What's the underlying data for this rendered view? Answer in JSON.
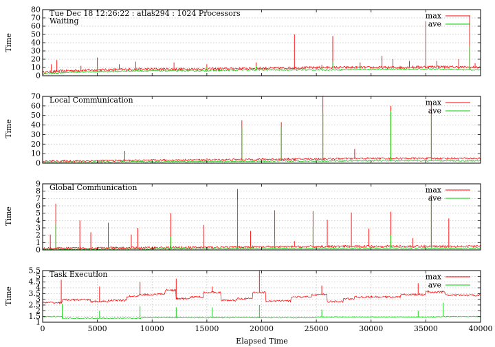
{
  "chart_data": [
    {
      "type": "line",
      "title": "Tue Dec 18 12:26:22 : atlas294 : 1024 Processors",
      "subtitle": "Waiting",
      "ylabel": "Time",
      "xlabel": "",
      "xlim": [
        0,
        40000
      ],
      "ylim": [
        0,
        80
      ],
      "yticks": [
        0,
        10,
        20,
        30,
        40,
        50,
        60,
        70,
        80
      ],
      "ytick_labels": [
        "0",
        "10",
        "20",
        "30",
        "40",
        "50",
        "60",
        "70",
        "80"
      ],
      "grid": true,
      "legend_position": "top-right",
      "series": [
        {
          "name": "max",
          "color": "#ff0000",
          "baseline": [
            [
              0,
              4
            ],
            [
              2000,
              6
            ],
            [
              5000,
              7
            ],
            [
              9000,
              8
            ],
            [
              14000,
              8
            ],
            [
              20000,
              9
            ],
            [
              26000,
              10
            ],
            [
              32000,
              10
            ],
            [
              36000,
              11
            ],
            [
              40000,
              10
            ]
          ],
          "noise": 1.5,
          "spikes": [
            [
              800,
              14
            ],
            [
              1300,
              19
            ],
            [
              3500,
              12
            ],
            [
              5000,
              22
            ],
            [
              7000,
              14
            ],
            [
              8500,
              17
            ],
            [
              12000,
              16
            ],
            [
              15000,
              14
            ],
            [
              19500,
              16
            ],
            [
              23000,
              50
            ],
            [
              25500,
              13
            ],
            [
              26500,
              48
            ],
            [
              29000,
              16
            ],
            [
              31000,
              24
            ],
            [
              32000,
              20
            ],
            [
              33500,
              18
            ],
            [
              35000,
              66
            ],
            [
              36000,
              18
            ],
            [
              38000,
              20
            ],
            [
              39000,
              73
            ],
            [
              39500,
              15
            ]
          ]
        },
        {
          "name": "ave",
          "color": "#00cc00",
          "baseline": [
            [
              0,
              2
            ],
            [
              2000,
              4
            ],
            [
              5000,
              5
            ],
            [
              9000,
              6
            ],
            [
              14000,
              6
            ],
            [
              20000,
              7
            ],
            [
              26000,
              7
            ],
            [
              32000,
              8
            ],
            [
              36000,
              8
            ],
            [
              40000,
              7
            ]
          ],
          "noise": 0.8,
          "spikes": [
            [
              5000,
              12
            ],
            [
              8500,
              9
            ],
            [
              15000,
              10
            ],
            [
              19500,
              12
            ],
            [
              25500,
              10
            ],
            [
              26500,
              17
            ],
            [
              29000,
              12
            ],
            [
              39000,
              36
            ]
          ]
        }
      ]
    },
    {
      "type": "line",
      "title": "Local Communication",
      "ylabel": "Time",
      "xlabel": "",
      "xlim": [
        0,
        40000
      ],
      "ylim": [
        0,
        70
      ],
      "yticks": [
        0,
        10,
        20,
        30,
        40,
        50,
        60,
        70
      ],
      "ytick_labels": [
        "0",
        "10",
        "20",
        "30",
        "40",
        "50",
        "60",
        "70"
      ],
      "grid": true,
      "legend_position": "top-right",
      "series": [
        {
          "name": "max",
          "color": "#ff0000",
          "baseline": [
            [
              0,
              2
            ],
            [
              10000,
              3
            ],
            [
              20000,
              4
            ],
            [
              30000,
              5
            ],
            [
              40000,
              5
            ]
          ],
          "noise": 1.0,
          "spikes": [
            [
              7500,
              13
            ],
            [
              18200,
              45
            ],
            [
              21800,
              43
            ],
            [
              25600,
              70
            ],
            [
              28500,
              15
            ],
            [
              31800,
              60
            ],
            [
              35500,
              64
            ]
          ]
        },
        {
          "name": "ave",
          "color": "#00cc00",
          "baseline": [
            [
              0,
              1
            ],
            [
              10000,
              1.5
            ],
            [
              20000,
              2
            ],
            [
              30000,
              2.5
            ],
            [
              40000,
              2.5
            ]
          ],
          "noise": 0.6,
          "spikes": [
            [
              18200,
              37
            ],
            [
              21800,
              38
            ],
            [
              25600,
              53
            ],
            [
              31800,
              55
            ],
            [
              35500,
              50
            ]
          ]
        }
      ]
    },
    {
      "type": "line",
      "title": "Global Communication",
      "ylabel": "Time",
      "xlabel": "",
      "xlim": [
        0,
        40000
      ],
      "ylim": [
        0,
        9
      ],
      "yticks": [
        0,
        1,
        2,
        3,
        4,
        5,
        6,
        7,
        8,
        9
      ],
      "ytick_labels": [
        "0",
        "1",
        "2",
        "3",
        "4",
        "5",
        "6",
        "7",
        "8",
        "9"
      ],
      "grid": true,
      "legend_position": "top-right",
      "series": [
        {
          "name": "max",
          "color": "#ff0000",
          "baseline": [
            [
              0,
              0.2
            ],
            [
              10000,
              0.3
            ],
            [
              20000,
              0.4
            ],
            [
              30000,
              0.5
            ],
            [
              40000,
              0.5
            ]
          ],
          "noise": 0.15,
          "spikes": [
            [
              700,
              2.1
            ],
            [
              1200,
              6.3
            ],
            [
              3400,
              4.0
            ],
            [
              4400,
              2.4
            ],
            [
              6000,
              3.7
            ],
            [
              8100,
              2.1
            ],
            [
              8700,
              3.0
            ],
            [
              11700,
              5.0
            ],
            [
              14700,
              3.4
            ],
            [
              17800,
              8.3
            ],
            [
              19000,
              2.6
            ],
            [
              21200,
              5.4
            ],
            [
              23000,
              1.2
            ],
            [
              24700,
              5.3
            ],
            [
              26000,
              4.1
            ],
            [
              28200,
              5.1
            ],
            [
              29800,
              2.9
            ],
            [
              31800,
              5.2
            ],
            [
              33800,
              1.6
            ],
            [
              35500,
              7.5
            ],
            [
              37100,
              4.3
            ]
          ]
        },
        {
          "name": "ave",
          "color": "#00cc00",
          "baseline": [
            [
              0,
              0.1
            ],
            [
              10000,
              0.15
            ],
            [
              20000,
              0.2
            ],
            [
              30000,
              0.25
            ],
            [
              40000,
              0.25
            ]
          ],
          "noise": 0.08,
          "spikes": [
            [
              1200,
              3.5
            ],
            [
              11700,
              1.8
            ],
            [
              17800,
              6.8
            ],
            [
              21200,
              1.6
            ],
            [
              24700,
              3.2
            ],
            [
              31800,
              2.0
            ],
            [
              35500,
              7.0
            ]
          ]
        }
      ]
    },
    {
      "type": "line",
      "title": "Task Execution",
      "ylabel": "Time",
      "xlabel": "Elapsed Time",
      "xlim": [
        0,
        40000
      ],
      "ylim": [
        1,
        5.5
      ],
      "yticks": [
        1,
        1.5,
        2,
        2.5,
        3,
        3.5,
        4,
        4.5,
        5,
        5.5
      ],
      "ytick_labels": [
        "1",
        "1.5",
        "2",
        "2.5",
        "3",
        "3.5",
        "4",
        "4.5",
        "5",
        "5.5"
      ],
      "xticks": [
        0,
        5000,
        10000,
        15000,
        20000,
        25000,
        30000,
        35000,
        40000
      ],
      "xtick_labels": [
        "0",
        "5000",
        "10000",
        "15000",
        "20000",
        "25000",
        "30000",
        "35000",
        "40000"
      ],
      "grid": true,
      "legend_position": "top-right",
      "series": [
        {
          "name": "max",
          "color": "#ff0000",
          "steps": [
            [
              0,
              2.7
            ],
            [
              1800,
              2.95
            ],
            [
              4400,
              2.8
            ],
            [
              6000,
              2.9
            ],
            [
              7700,
              3.25
            ],
            [
              8800,
              3.4
            ],
            [
              10200,
              3.45
            ],
            [
              11200,
              3.8
            ],
            [
              12200,
              3.05
            ],
            [
              13500,
              3.2
            ],
            [
              14700,
              3.6
            ],
            [
              16300,
              2.9
            ],
            [
              17700,
              3.05
            ],
            [
              19200,
              3.6
            ],
            [
              20400,
              2.85
            ],
            [
              22700,
              3.2
            ],
            [
              24600,
              3.4
            ],
            [
              26000,
              2.8
            ],
            [
              27500,
              3.05
            ],
            [
              28500,
              3.2
            ],
            [
              32700,
              3.4
            ],
            [
              35000,
              3.65
            ],
            [
              36800,
              3.35
            ],
            [
              37800,
              3.35
            ],
            [
              40000,
              3.35
            ]
          ],
          "noise": 0.08,
          "spikes": [
            [
              1700,
              4.7
            ],
            [
              5200,
              4.1
            ],
            [
              8900,
              4.5
            ],
            [
              12200,
              4.8
            ],
            [
              15500,
              4.1
            ],
            [
              19800,
              5.6
            ],
            [
              25500,
              4.2
            ],
            [
              34300,
              4.4
            ]
          ]
        },
        {
          "name": "ave",
          "color": "#00cc00",
          "steps": [
            [
              0,
              1.5
            ],
            [
              1800,
              1.35
            ],
            [
              9000,
              1.4
            ],
            [
              15000,
              1.4
            ],
            [
              25000,
              1.45
            ],
            [
              36000,
              1.5
            ],
            [
              40000,
              1.5
            ]
          ],
          "noise": 0.04,
          "spikes": [
            [
              1800,
              2.6
            ],
            [
              5200,
              2.0
            ],
            [
              8900,
              2.4
            ],
            [
              12200,
              2.3
            ],
            [
              15500,
              2.3
            ],
            [
              19800,
              2.5
            ],
            [
              25500,
              2.1
            ],
            [
              34300,
              2.0
            ],
            [
              36600,
              2.7
            ]
          ]
        }
      ]
    }
  ]
}
